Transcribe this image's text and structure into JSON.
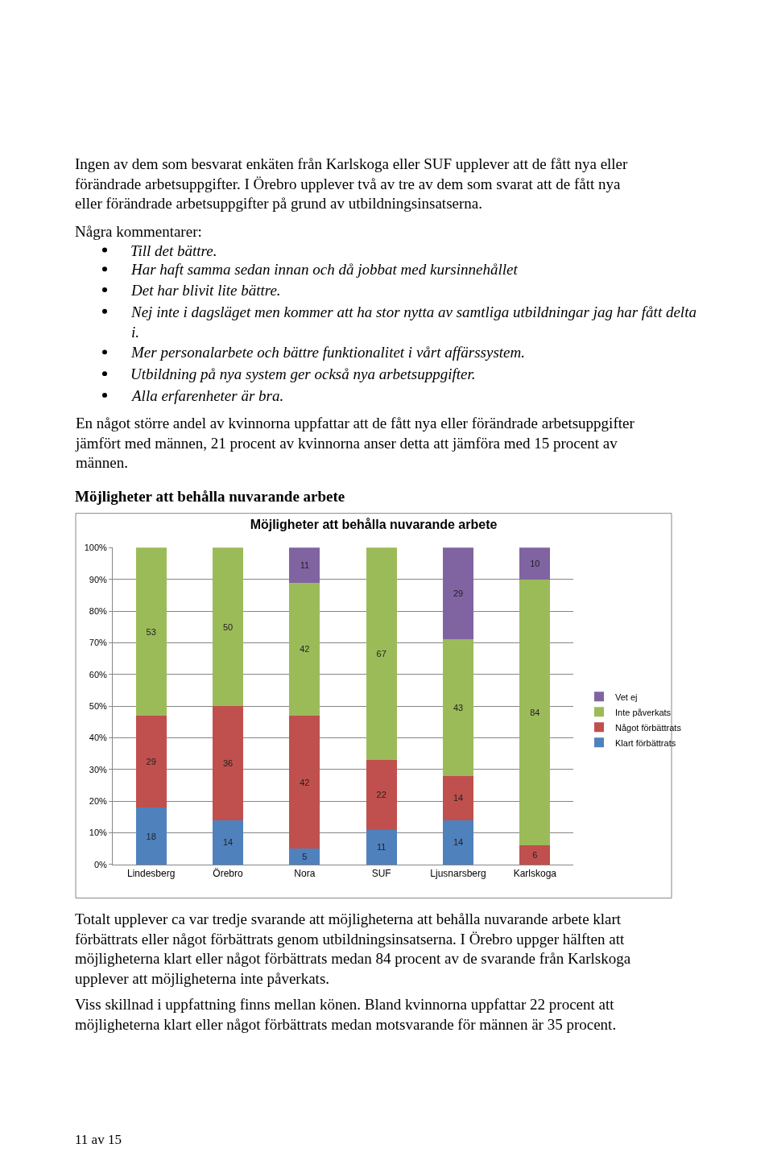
{
  "chart_data": {
    "type": "bar",
    "stacked": true,
    "title": "Möjligheter att behålla nuvarande arbete",
    "categories": [
      "Lindesberg",
      "Örebro",
      "Nora",
      "SUF",
      "Ljusnarsberg",
      "Karlskoga"
    ],
    "series": [
      {
        "name": "Klart förbättrats",
        "color": "#4f81bd",
        "values": [
          18,
          14,
          5,
          11,
          14,
          null
        ]
      },
      {
        "name": "Något förbättrats",
        "color": "#c0504d",
        "values": [
          29,
          36,
          42,
          22,
          14,
          6
        ]
      },
      {
        "name": "Inte påverkats",
        "color": "#9bbb59",
        "values": [
          53,
          50,
          42,
          67,
          43,
          84
        ]
      },
      {
        "name": "Vet ej",
        "color": "#8064a2",
        "values": [
          null,
          null,
          11,
          null,
          29,
          10
        ]
      }
    ],
    "ylim": [
      0,
      100
    ],
    "yticks": [
      {
        "value": 0,
        "label": "0%"
      },
      {
        "value": 10,
        "label": "10%"
      },
      {
        "value": 20,
        "label": "20%"
      },
      {
        "value": 30,
        "label": "30%"
      },
      {
        "value": 40,
        "label": "40%"
      },
      {
        "value": 50,
        "label": "50%"
      },
      {
        "value": 60,
        "label": "60%"
      },
      {
        "value": 70,
        "label": "70%"
      },
      {
        "value": 80,
        "label": "80%"
      },
      {
        "value": 90,
        "label": "90%"
      },
      {
        "value": 100,
        "label": "100%"
      }
    ],
    "grid": "y",
    "legend": "right",
    "data_labels": true,
    "annotations": [
      "Ingen av dem som besvarat enkäten från Karlskoga eller SUF upplever att de fått nya eller\nförändrade arbetsuppgifter. I Örebro upplever två av tre av dem som svarat att de fått nya\neller förändrade arbetsuppgifter på grund av utbildningsinsatserna.",
      "Några kommentarer:",
      "Till det bättre.",
      "Har haft samma sedan innan och då jobbat med kursinnehållet",
      "Det har blivit lite bättre.",
      "Nej inte i dagsläget men kommer att ha stor nytta av samtliga utbildningar jag har fått delta\ni.",
      "Mer personalarbete och bättre funktionalitet i vårt affärssystem.",
      "Utbildning på nya system ger också nya arbetsuppgifter.",
      "Alla erfarenheter är bra.",
      "En något större andel av kvinnorna uppfattar att de fått nya eller förändrade arbetsuppgifter\njämfört med männen, 21 procent av kvinnorna anser detta att jämföra med 15 procent av\nmännen.",
      "Möjligheter att behålla nuvarande arbete",
      "Totalt upplever ca var tredje svarande att möjligheterna att behålla nuvarande arbete klart\nförbättrats eller något förbättrats genom utbildningsinsatserna. I Örebro uppger hälften att\nmöjligheterna klart eller något förbättrats medan 84 procent av de svarande från Karlskoga\nupplever att möjligheterna inte påverkats.",
      "Viss skillnad i uppfattning finns mellan könen. Bland kvinnorna uppfattar 22 procent att\nmöjligheterna klart eller något förbättrats medan motsvarande för männen är 35 procent.",
      "11 av 15"
    ]
  }
}
